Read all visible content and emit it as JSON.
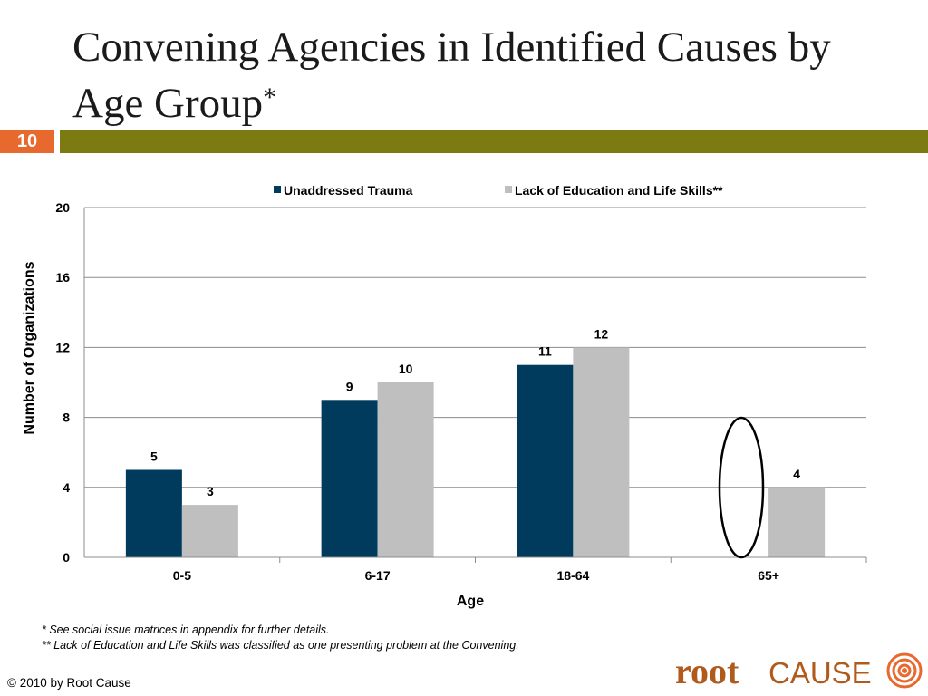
{
  "slide": {
    "title": "Convening Agencies in Identified Causes by Age Group",
    "title_mark": "*",
    "page_number": "10",
    "footnote1": "* See social issue matrices in appendix for further details.",
    "footnote2": "** Lack of Education and Life Skills was classified as one presenting problem at the Convening.",
    "copyright": "© 2010 by Root Cause",
    "logo_text_bold": "root",
    "logo_text_light": "CAUSE",
    "colors": {
      "accent_bar": "#7b7b12",
      "badge": "#e8692e",
      "logo": "#b05a1c"
    }
  },
  "chart_data": {
    "type": "bar",
    "categories": [
      "0-5",
      "6-17",
      "18-64",
      "65+"
    ],
    "series": [
      {
        "name": "Unaddressed Trauma",
        "color": "#003a5c",
        "values": [
          5,
          9,
          11,
          null
        ]
      },
      {
        "name": "Lack of Education and Life Skills**",
        "color": "#bfbfbf",
        "values": [
          3,
          10,
          12,
          4
        ]
      }
    ],
    "xlabel": "Age",
    "ylabel": "Number of Organizations",
    "ylim": [
      0,
      20
    ],
    "yticks": [
      0,
      4,
      8,
      12,
      16,
      20
    ],
    "grid": true,
    "legend": "top",
    "annotation": "ellipse around 65+ empty Unaddressed Trauma position"
  }
}
